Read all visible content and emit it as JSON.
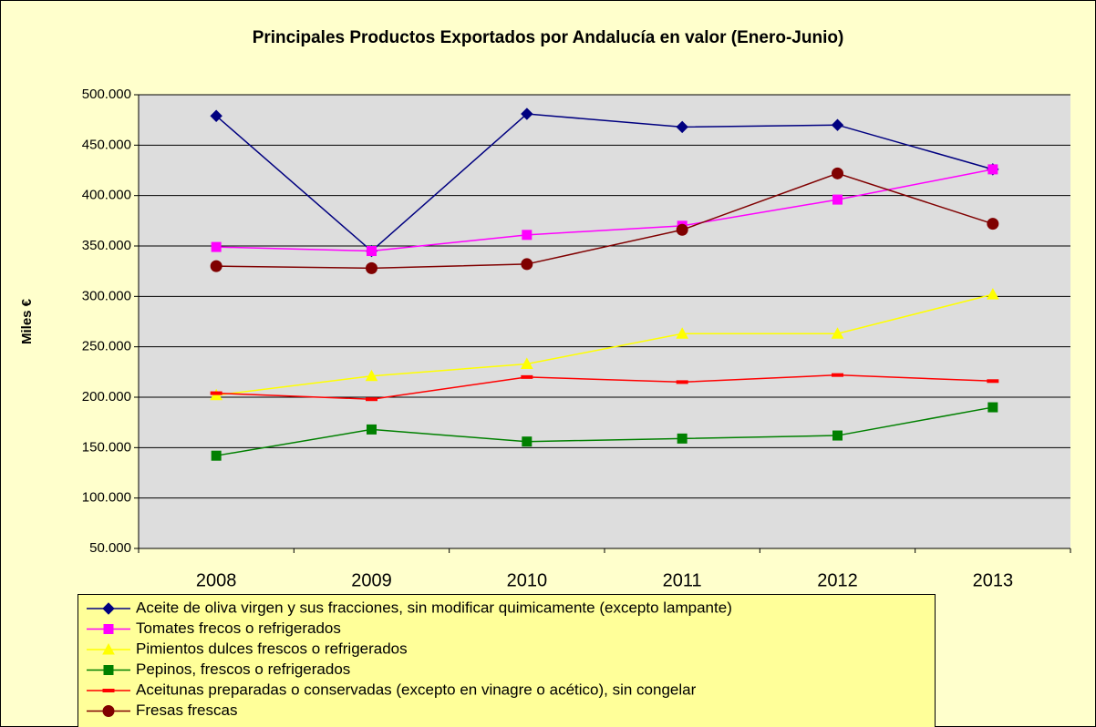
{
  "chart_data": {
    "type": "line",
    "title": "Principales Productos Exportados por Andalucía en valor (Enero-Junio)",
    "y_label": "Miles €",
    "categories": [
      "2008",
      "2009",
      "2010",
      "2011",
      "2012",
      "2013"
    ],
    "ylim": [
      50000,
      500000
    ],
    "yticks": [
      {
        "value": 50000,
        "label": "50.000"
      },
      {
        "value": 100000,
        "label": "100.000"
      },
      {
        "value": 150000,
        "label": "150.000"
      },
      {
        "value": 200000,
        "label": "200.000"
      },
      {
        "value": 250000,
        "label": "250.000"
      },
      {
        "value": 300000,
        "label": "300.000"
      },
      {
        "value": 350000,
        "label": "350.000"
      },
      {
        "value": 400000,
        "label": "400.000"
      },
      {
        "value": 450000,
        "label": "450.000"
      },
      {
        "value": 500000,
        "label": "500.000"
      }
    ],
    "grid": true,
    "legend": "bottom",
    "series": [
      {
        "name": "Aceite de oliva virgen y sus fracciones, sin modificar quimicamente (excepto lampante)",
        "color": "#000080",
        "marker": "diamond",
        "values": [
          479000,
          345000,
          481000,
          468000,
          470000,
          426000
        ]
      },
      {
        "name": "Tomates frecos o refrigerados",
        "color": "#ff00ff",
        "marker": "square",
        "values": [
          349000,
          345000,
          361000,
          370000,
          396000,
          426000
        ]
      },
      {
        "name": "Pimientos dulces frescos o refrigerados",
        "color": "#ffff00",
        "marker": "triangle",
        "values": [
          202000,
          221000,
          233000,
          263000,
          263000,
          302000
        ]
      },
      {
        "name": "Pepinos, frescos o refrigerados",
        "color": "#008000",
        "marker": "square",
        "values": [
          142000,
          168000,
          156000,
          159000,
          162000,
          190000
        ]
      },
      {
        "name": "Aceitunas preparadas o conservadas (excepto en vinagre o acético), sin congelar",
        "color": "#ff0000",
        "marker": "dash",
        "values": [
          204000,
          198000,
          220000,
          215000,
          222000,
          216000
        ]
      },
      {
        "name": "Fresas frescas",
        "color": "#800000",
        "marker": "circle",
        "values": [
          330000,
          328000,
          332000,
          366000,
          422000,
          372000
        ]
      }
    ]
  }
}
